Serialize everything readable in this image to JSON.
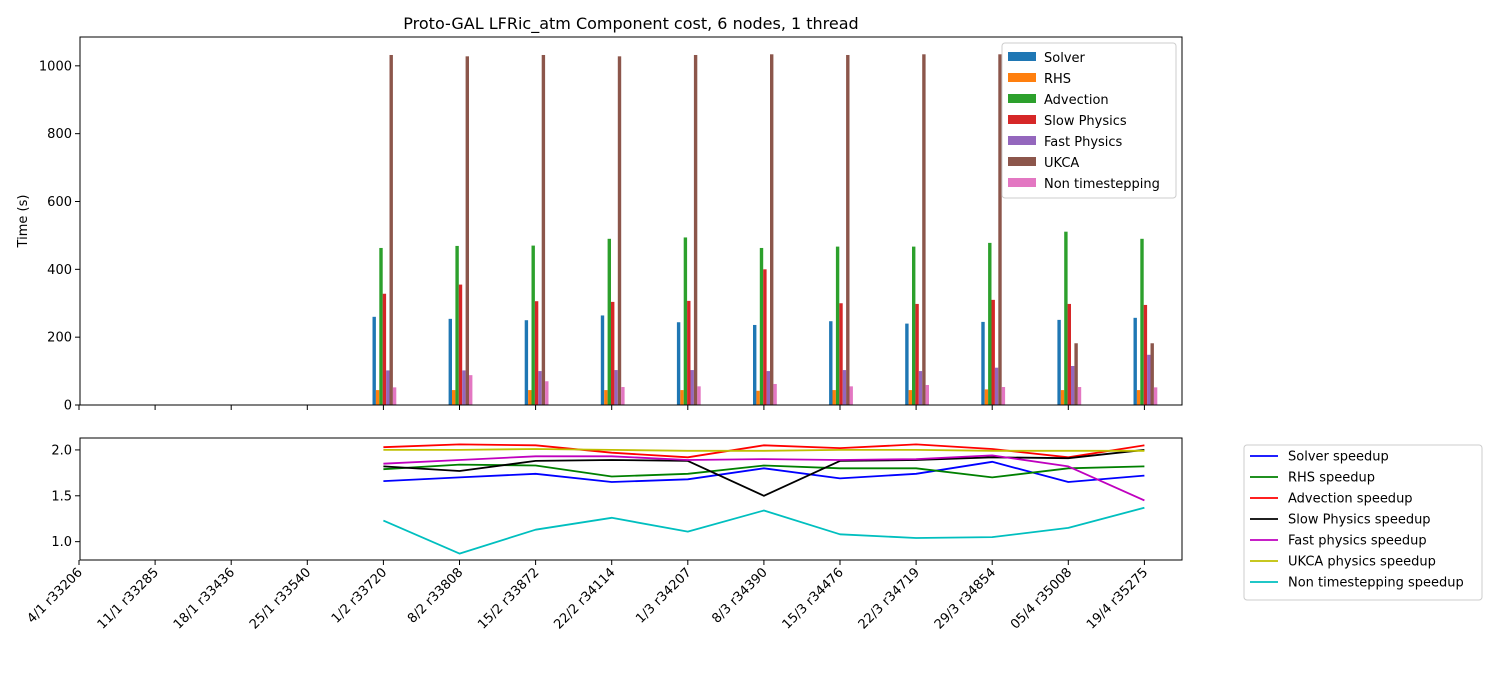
{
  "chart_data": [
    {
      "type": "bar",
      "title": "Proto-GAL LFRic_atm Component cost, 6 nodes, 1 thread",
      "xlabel": "",
      "ylabel": "Time (s)",
      "ylim": [
        0,
        1085
      ],
      "yticks": [
        0,
        200,
        400,
        600,
        800,
        1000
      ],
      "grid": false,
      "legend_position": "top-right",
      "categories": [
        "4/1 r33206",
        "11/1 r33285",
        "18/1 r33436",
        "25/1 r33540",
        "1/2 r33720",
        "8/2 r33808",
        "15/2 r33872",
        "22/2 r34114",
        "1/3 r34207",
        "8/3 r34390",
        "15/3 r34476",
        "22/3 r34719",
        "29/3 r34854",
        "05/4 r35008",
        "19/4 r35275"
      ],
      "series": [
        {
          "name": "Solver",
          "color": "#1f77b4",
          "values": [
            null,
            null,
            null,
            null,
            260,
            254,
            250,
            264,
            244,
            236,
            247,
            240,
            245,
            251,
            257
          ]
        },
        {
          "name": "RHS",
          "color": "#ff7f0e",
          "values": [
            null,
            null,
            null,
            null,
            44,
            44,
            44,
            44,
            44,
            42,
            44,
            44,
            46,
            44,
            44
          ]
        },
        {
          "name": "Advection",
          "color": "#2ca02c",
          "values": [
            null,
            null,
            null,
            null,
            463,
            469,
            470,
            490,
            494,
            463,
            467,
            467,
            478,
            511,
            490
          ]
        },
        {
          "name": "Slow Physics",
          "color": "#d62728",
          "values": [
            null,
            null,
            null,
            null,
            328,
            355,
            306,
            304,
            307,
            400,
            300,
            298,
            310,
            298,
            295
          ]
        },
        {
          "name": "Fast Physics",
          "color": "#9467bd",
          "values": [
            null,
            null,
            null,
            null,
            102,
            102,
            100,
            103,
            103,
            100,
            103,
            100,
            110,
            115,
            148
          ]
        },
        {
          "name": "UKCA",
          "color": "#8c564b",
          "values": [
            null,
            null,
            null,
            null,
            1032,
            1028,
            1032,
            1028,
            1032,
            1034,
            1032,
            1034,
            1034,
            182,
            182
          ]
        },
        {
          "name": "Non timestepping",
          "color": "#e377c2",
          "values": [
            null,
            null,
            null,
            null,
            52,
            88,
            70,
            53,
            55,
            62,
            55,
            59,
            53,
            53,
            52
          ]
        }
      ]
    },
    {
      "type": "line",
      "title": "",
      "xlabel": "",
      "ylabel": "",
      "ylim": [
        0.8,
        2.13
      ],
      "yticks": [
        1.0,
        1.5,
        2.0
      ],
      "ytick_labels": [
        "1.0",
        "1.5",
        "2.0"
      ],
      "grid": false,
      "legend_position": "outside-right",
      "categories": [
        "4/1 r33206",
        "11/1 r33285",
        "18/1 r33436",
        "25/1 r33540",
        "1/2 r33720",
        "8/2 r33808",
        "15/2 r33872",
        "22/2 r34114",
        "1/3 r34207",
        "8/3 r34390",
        "15/3 r34476",
        "22/3 r34719",
        "29/3 r34854",
        "05/4 r35008",
        "19/4 r35275"
      ],
      "series": [
        {
          "name": "Solver speedup",
          "color": "#0000ff",
          "values": [
            null,
            null,
            null,
            null,
            1.66,
            1.7,
            1.74,
            1.65,
            1.68,
            1.8,
            1.69,
            1.74,
            1.87,
            1.65,
            1.72
          ]
        },
        {
          "name": "RHS speedup",
          "color": "#008000",
          "values": [
            null,
            null,
            null,
            null,
            1.79,
            1.84,
            1.83,
            1.71,
            1.74,
            1.83,
            1.8,
            1.8,
            1.7,
            1.8,
            1.82
          ]
        },
        {
          "name": "Advection speedup",
          "color": "#ff0000",
          "values": [
            null,
            null,
            null,
            null,
            2.03,
            2.06,
            2.05,
            1.97,
            1.92,
            2.05,
            2.02,
            2.06,
            2.01,
            1.92,
            2.05
          ]
        },
        {
          "name": "Slow Physics speedup",
          "color": "#000000",
          "values": [
            null,
            null,
            null,
            null,
            1.82,
            1.77,
            1.88,
            1.89,
            1.88,
            1.5,
            1.88,
            1.89,
            1.92,
            1.91,
            2.0
          ]
        },
        {
          "name": "Fast physics speedup",
          "color": "#bf00bf",
          "values": [
            null,
            null,
            null,
            null,
            1.85,
            1.89,
            1.93,
            1.93,
            1.89,
            1.9,
            1.89,
            1.9,
            1.94,
            1.82,
            1.45
          ]
        },
        {
          "name": "UKCA physics speedup",
          "color": "#bfbf00",
          "values": [
            null,
            null,
            null,
            null,
            2.0,
            2.0,
            2.01,
            2.0,
            1.99,
            1.99,
            2.0,
            2.0,
            1.99,
            1.99,
            1.99
          ]
        },
        {
          "name": "Non timestepping speedup",
          "color": "#00bfbf",
          "values": [
            null,
            null,
            null,
            null,
            1.23,
            0.87,
            1.13,
            1.26,
            1.11,
            1.34,
            1.08,
            1.04,
            1.05,
            1.15,
            1.37
          ]
        }
      ]
    }
  ]
}
